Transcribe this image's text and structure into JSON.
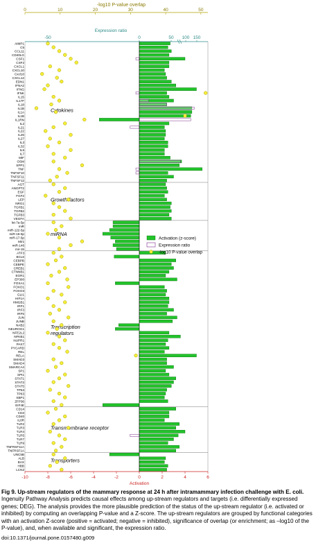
{
  "chart_data": {
    "type": "bar",
    "top_axis_label": "-log10 P-value overlap",
    "top_axis_ticks": [
      0,
      10,
      20,
      30,
      40,
      50
    ],
    "expression_axis_label": "Expression ratio",
    "expression_ticks": [
      "-50",
      "0",
      "50",
      "100",
      "150"
    ],
    "bottom_axis_label": "Activation",
    "bottom_ticks": [
      -10,
      -8,
      -6,
      -4,
      -2,
      0,
      2,
      4,
      6
    ],
    "legend": [
      "Activation (z-score)",
      "Expression ratio",
      "-log10 P-value overlap"
    ],
    "colors": {
      "activation": "#22c32a",
      "activation_stroke": "#0a6a10",
      "expression": "#7a2a8a",
      "pvalue": "#f3ee3a",
      "pvalue_stroke": "#b2a200",
      "axis": "#2a8a86"
    },
    "categories": [
      {
        "name": "Cytokines",
        "rows": [
          [
            "AIMP1",
            2.7,
            null,
            -8.0
          ],
          [
            "C5",
            2.5,
            null,
            -7.5
          ],
          [
            "CCL11",
            2.8,
            null,
            -7.0
          ],
          [
            "CD40LG",
            2.6,
            null,
            -6.5
          ],
          [
            "CSF1",
            4.0,
            -0.3,
            -6.0
          ],
          [
            "CSF2",
            2.6,
            null,
            -5.5
          ],
          [
            "CXCL1",
            2.6,
            null,
            -7.8
          ],
          [
            "CXCL10",
            2.2,
            null,
            -7.0
          ],
          [
            "Cxcl10",
            2.3,
            null,
            -8.5
          ],
          [
            "CXCL12",
            2.4,
            null,
            -7.2
          ],
          [
            "EDN1",
            2.8,
            null,
            -6.8
          ],
          [
            "IFNA2",
            3.2,
            null,
            -8.0
          ],
          [
            "IFNG",
            5.0,
            null,
            -8.3
          ],
          [
            "IFNK",
            2.4,
            -0.3,
            5.8
          ],
          [
            "IL15",
            2.6,
            null,
            -7.5
          ],
          [
            "IL17F",
            3.0,
            0.8,
            -7.0
          ],
          [
            "IL18",
            2.4,
            2.4,
            -7.7
          ],
          [
            "IL1B",
            4.6,
            4.8,
            -9.0
          ],
          [
            "IL1A",
            4.6,
            null,
            -7.3
          ],
          [
            "IL1B",
            4.5,
            null,
            4.0
          ],
          [
            "IL1RN",
            -3.5,
            4.5,
            -4.8
          ],
          [
            "IL2",
            2.6,
            null,
            -6.5
          ],
          [
            "IL21",
            2.2,
            -0.8,
            -7.5
          ],
          [
            "IL22",
            2.3,
            null,
            -8.2
          ],
          [
            "IL26",
            2.3,
            null,
            -6.0
          ],
          [
            "IL27",
            2.2,
            null,
            -7.8
          ],
          [
            "IL3",
            2.5,
            null,
            -7.0
          ],
          [
            "IL32",
            2.5,
            null,
            -8.0
          ],
          [
            "IL5",
            2.2,
            null,
            -6.0
          ],
          [
            "IL7",
            2.2,
            null,
            -7.5
          ],
          [
            "MIF",
            2.7,
            null,
            -6.5
          ],
          [
            "OSM",
            3.7,
            3.6,
            -7.5
          ],
          [
            "SPP1",
            3.5,
            null,
            -5.0
          ],
          [
            "TNF",
            5.5,
            -0.3,
            -7.0
          ],
          [
            "TNFSF10",
            2.5,
            -0.3,
            -6.3
          ],
          [
            "TNFSF11",
            3.0,
            null,
            -7.2
          ],
          [
            "TNFSF12",
            2.4,
            null,
            -7.8
          ]
        ]
      },
      {
        "name": "Growth factors",
        "rows": [
          [
            "AGT",
            2.3,
            null,
            -7.5
          ],
          [
            "ANGPT2",
            2.4,
            null,
            -6.5
          ],
          [
            "EGF",
            2.5,
            null,
            -7.0
          ],
          [
            "FGF2",
            2.2,
            null,
            -8.2
          ],
          [
            "LEP",
            2.4,
            null,
            -6.2
          ],
          [
            "NRG1",
            2.8,
            null,
            -7.5
          ],
          [
            "TGFB1",
            2.7,
            null,
            -7.0
          ],
          [
            "TGFB2",
            2.8,
            null,
            -6.5
          ],
          [
            "TGFB3",
            2.6,
            null,
            -7.5
          ],
          [
            "VEGFA",
            2.8,
            null,
            -6.0
          ]
        ]
      },
      {
        "name": "miRNA",
        "rows": [
          [
            "let-7a-5p",
            -2.3,
            null,
            -7.5
          ],
          [
            "miR",
            -2.3,
            null,
            -6.8
          ],
          [
            "miR-122-5p",
            -2.6,
            null,
            -7.3
          ],
          [
            "miR-16-5p",
            -3.2,
            null,
            -8.0
          ],
          [
            "miR-17-5p",
            -2.5,
            null,
            -7.0
          ],
          [
            "Mir1",
            -2.1,
            null,
            -5.0
          ],
          [
            "miR-146",
            -2.3,
            null,
            -6.0
          ],
          [
            "mir-15",
            -2.0,
            null,
            -7.0
          ]
        ]
      },
      {
        "name": "Transcription regulators",
        "rows": [
          [
            "ATF3",
            2.3,
            null,
            -7.5
          ],
          [
            "BCL6",
            -2.2,
            null,
            -6.8
          ],
          [
            "CEBPB",
            3.2,
            null,
            -7.3
          ],
          [
            "CEBPE",
            2.8,
            null,
            -8.0
          ],
          [
            "CREB1",
            3.0,
            null,
            -6.5
          ],
          [
            "CTNNB1",
            2.6,
            null,
            -7.0
          ],
          [
            "EGR1",
            2.3,
            null,
            -7.7
          ],
          [
            "EP300",
            3.3,
            null,
            -6.3
          ],
          [
            "FOXA1",
            -2.1,
            null,
            -8.0
          ],
          [
            "FOXO1",
            2.2,
            null,
            -6.2
          ],
          [
            "FOXO3",
            2.4,
            null,
            -7.5
          ],
          [
            "GLI1",
            2.3,
            null,
            -6.8
          ],
          [
            "HIF1A",
            2.6,
            null,
            -8.0
          ],
          [
            "HMGB1",
            2.6,
            null,
            -6.5
          ],
          [
            "IRF1",
            2.5,
            null,
            -7.5
          ],
          [
            "IRF3",
            3.0,
            null,
            -7.0
          ],
          [
            "IRF5",
            2.4,
            null,
            -7.8
          ],
          [
            "JUN",
            3.3,
            null,
            -6.2
          ],
          [
            "JUNB",
            2.9,
            null,
            -7.5
          ],
          [
            "NAB2",
            -1.8,
            null,
            -6.8
          ],
          [
            "NEUROG1",
            -2.1,
            null,
            -7.2
          ],
          [
            "NFE2L2",
            2.6,
            null,
            -8.0
          ],
          [
            "NFKB1",
            3.6,
            null,
            -7.0
          ],
          [
            "NUPR1",
            2.5,
            null,
            -6.5
          ],
          [
            "PAX7",
            2.3,
            null,
            -7.5
          ],
          [
            "PYCARD",
            2.6,
            null,
            -7.0
          ],
          [
            "REL",
            2.2,
            null,
            -6.3
          ],
          [
            "RELA",
            5.0,
            null,
            -0.3
          ],
          [
            "SMAD3",
            2.4,
            null,
            -7.5
          ],
          [
            "SMAD4",
            2.4,
            null,
            -6.8
          ],
          [
            "SMARCA4",
            3.0,
            null,
            -7.3
          ],
          [
            "SP1",
            2.3,
            null,
            -8.0
          ],
          [
            "SPI1",
            2.6,
            null,
            -6.5
          ],
          [
            "STAT1",
            3.2,
            null,
            -7.0
          ],
          [
            "STAT3",
            3.0,
            null,
            -7.5
          ],
          [
            "STAT5",
            2.8,
            null,
            -6.2
          ],
          [
            "TP53",
            2.4,
            null,
            -7.8
          ],
          [
            "TP63",
            2.3,
            null,
            -7.0
          ],
          [
            "XBP1",
            2.2,
            null,
            -6.5
          ],
          [
            "ZFP36",
            2.5,
            null,
            -7.5
          ],
          [
            "EIF4E",
            -3.2,
            null,
            -6.8
          ]
        ]
      },
      {
        "name": "Transmembrane receptor",
        "rows": [
          [
            "CD14",
            3.2,
            null,
            -7.3
          ],
          [
            "CD3",
            2.6,
            null,
            -8.0
          ],
          [
            "CD40",
            2.6,
            null,
            -6.5
          ],
          [
            "IL6R",
            2.2,
            null,
            -7.0
          ],
          [
            "TLR2",
            3.5,
            null,
            -7.5
          ],
          [
            "TLR3",
            3.2,
            null,
            -6.2
          ],
          [
            "TLR4",
            4.0,
            null,
            -7.8
          ],
          [
            "TLR5",
            3.4,
            -0.8,
            -7.0
          ],
          [
            "TLR7",
            3.0,
            null,
            -6.5
          ],
          [
            "TLR9",
            2.5,
            null,
            -7.5
          ],
          [
            "TNFRSF11A",
            3.5,
            null,
            -6.8
          ],
          [
            "TNFRSF1A",
            3.2,
            null,
            -7.3
          ]
        ]
      },
      {
        "name": "Transporters",
        "rows": [
          [
            "UNC5B",
            -2.6,
            null,
            -7.5
          ],
          [
            "ALB",
            2.3,
            null,
            -6.5
          ],
          [
            "BAX",
            2.2,
            null,
            -7.2
          ],
          [
            "HBB",
            2.5,
            null,
            -7.8
          ],
          [
            "LCN2",
            2.4,
            null,
            -6.8
          ]
        ]
      }
    ]
  },
  "caption": {
    "bold": "Fig 9. Up-stream regulators of the mammary response at 24 h after intramammary infection challenge with E. coli.",
    "text": " Ingenuity Pathway Analysis predicts causal effects among up-stream regulators and targets (i.e. differentially expressed genes; DEG). The analysis provides the more plausible prediction of the status of the up-stream regulator (i.e. activated or inhibited) by computing an overlapping P-value and a Z-score. The up-stream regulators are grouped by functional categories with an activation Z-score (positive = activated; negative = inhibited), significance of overlap (or enrichment; as –log10 of the P-value), and, when available and significant, the expression ratio."
  },
  "doi": "doi:10.1371/journal.pone.0157480.g009"
}
